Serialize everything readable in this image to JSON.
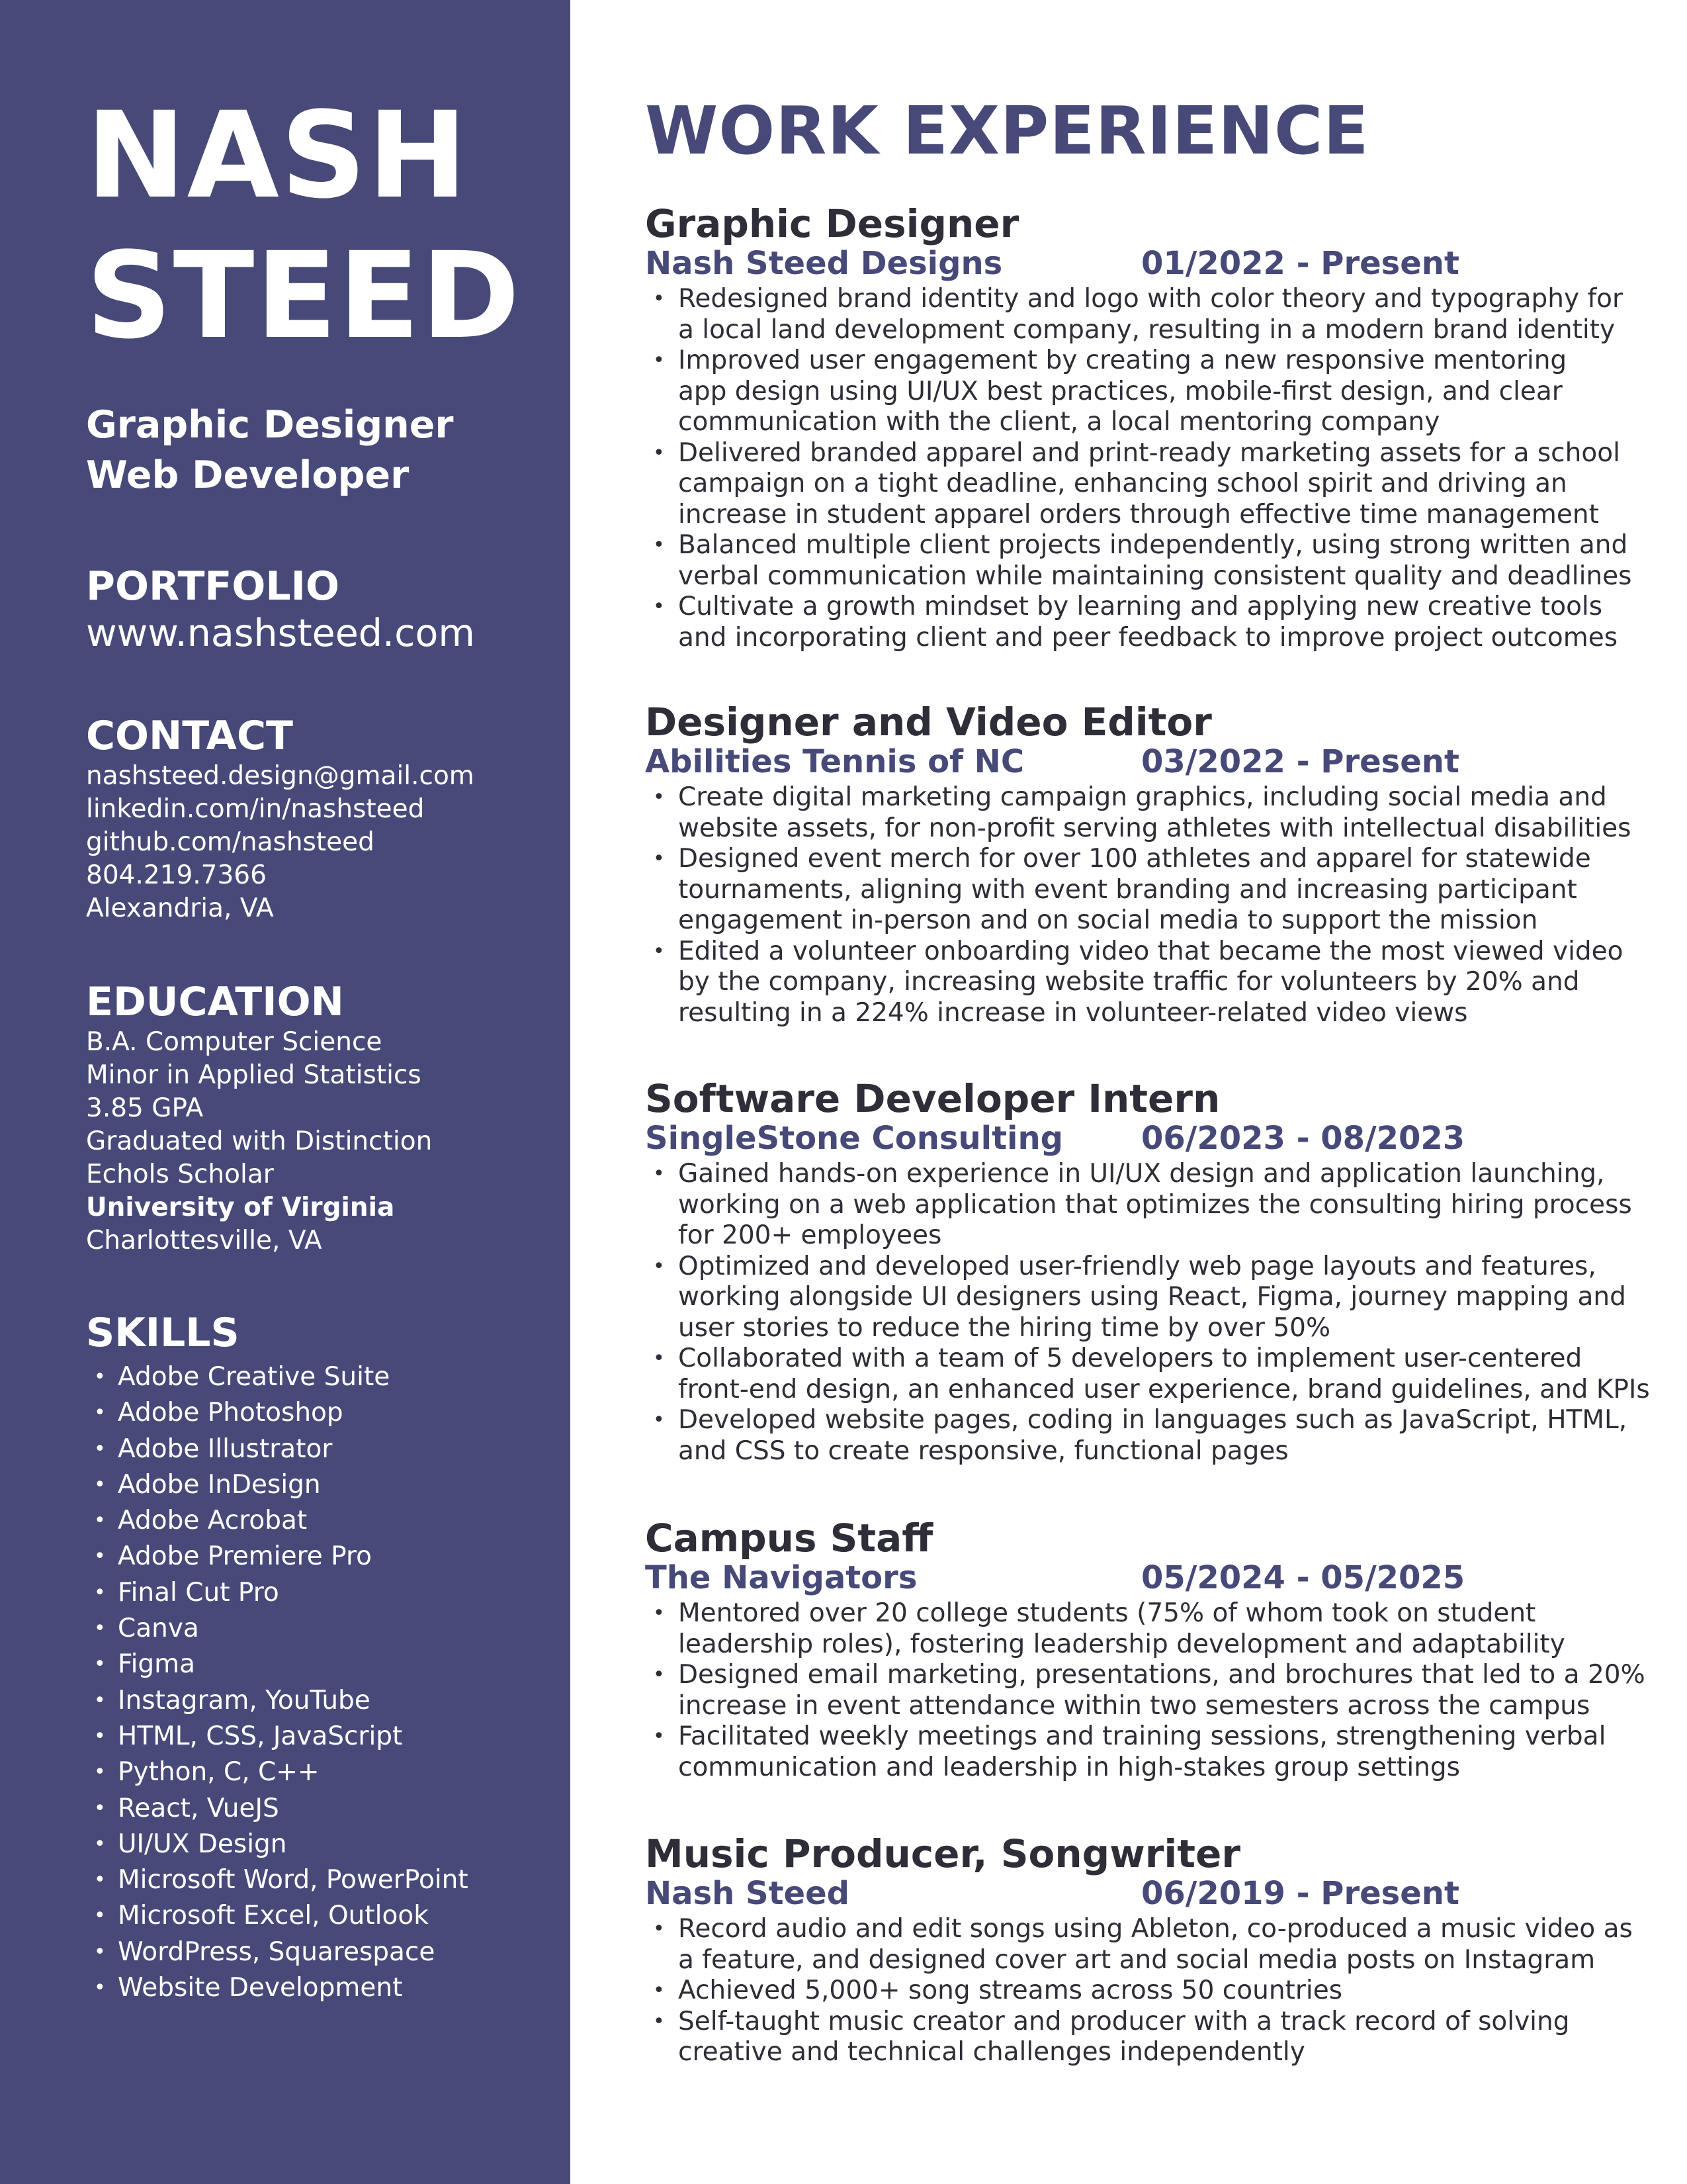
{
  "colors": {
    "sidebar": "#474a78",
    "accent": "#474a78",
    "text": "#2e2e38",
    "sidebar_text": "#ffffff"
  },
  "sidebar": {
    "name_first": "NASH",
    "name_last": "STEED",
    "title_1": "Graphic Designer",
    "title_2": "Web Developer",
    "portfolio": {
      "heading": "PORTFOLIO",
      "url": "www.nashsteed.com"
    },
    "contact": {
      "heading": "CONTACT",
      "items": [
        "nashsteed.design@gmail.com",
        "linkedin.com/in/nashsteed",
        "github.com/nashsteed",
        "804.219.7366",
        "Alexandria, VA"
      ]
    },
    "education": {
      "heading": "EDUCATION",
      "items": [
        "B.A. Computer Science",
        "Minor in Applied Statistics",
        "3.85 GPA",
        "Graduated with Distinction",
        "Echols Scholar",
        "University of Virginia",
        "Charlottesville, VA"
      ]
    },
    "skills": {
      "heading": "SKILLS",
      "items": [
        "Adobe Creative Suite",
        "Adobe Photoshop",
        "Adobe Illustrator",
        "Adobe InDesign",
        "Adobe Acrobat",
        "Adobe Premiere Pro",
        "Final Cut Pro",
        "Canva",
        "Figma",
        "Instagram, YouTube",
        "HTML, CSS, JavaScript",
        "Python, C, C++",
        "React, VueJS",
        "UI/UX Design",
        "Microsoft Word, PowerPoint",
        "Microsoft Excel, Outlook",
        "WordPress, Squarespace",
        "Website Development"
      ]
    }
  },
  "main": {
    "heading": "WORK EXPERIENCE",
    "jobs": [
      {
        "title": "Graphic Designer",
        "company": "Nash Steed Designs",
        "dates": "01/2022 - Present",
        "bullets": [
          [
            "Redesigned brand identity and logo with color theory and typography for",
            "a local land development company, resulting in a modern brand identity"
          ],
          [
            "Improved user engagement by creating a new responsive mentoring",
            "app design using UI/UX best practices, mobile-first design, and clear",
            "communication with the client, a local mentoring company"
          ],
          [
            "Delivered branded apparel and print-ready marketing assets for a school",
            "campaign on a tight deadline, enhancing school spirit and driving an",
            "increase in student apparel orders through effective time management"
          ],
          [
            "Balanced multiple client projects independently, using strong written and",
            "verbal communication while maintaining consistent quality and deadlines"
          ],
          [
            "Cultivate a growth mindset by learning and applying new creative tools",
            "and incorporating client and peer feedback to improve project outcomes"
          ]
        ]
      },
      {
        "title": "Designer and Video Editor",
        "company": "Abilities Tennis of NC",
        "dates": "03/2022 - Present",
        "bullets": [
          [
            "Create digital marketing campaign graphics, including social media and",
            "website assets, for non-profit serving athletes with intellectual disabilities"
          ],
          [
            "Designed event merch for over 100 athletes and apparel for statewide",
            "tournaments, aligning with event branding and increasing participant",
            "engagement in-person and on social media to support the mission"
          ],
          [
            "Edited a volunteer onboarding video that became the most viewed video",
            "by the company, increasing website traffic for volunteers by 20% and",
            "resulting in a 224% increase in volunteer-related video views"
          ]
        ]
      },
      {
        "title": "Software Developer Intern",
        "company": "SingleStone Consulting",
        "dates": "06/2023 - 08/2023",
        "bullets": [
          [
            "Gained hands-on experience in UI/UX design and application launching,",
            "working on a web application that optimizes the consulting hiring process",
            "for 200+ employees"
          ],
          [
            "Optimized and developed user-friendly web page layouts and features,",
            "working alongside UI designers using React, Figma, journey mapping and",
            "user stories to reduce the hiring time by over 50%"
          ],
          [
            "Collaborated with a team of 5 developers to implement user-centered",
            "front-end design, an enhanced user experience, brand guidelines, and KPIs"
          ],
          [
            "Developed website pages, coding in languages such as JavaScript, HTML,",
            "and CSS to create responsive, functional pages"
          ]
        ]
      },
      {
        "title": "Campus Staff",
        "company": "The Navigators",
        "dates": "05/2024 - 05/2025",
        "bullets": [
          [
            "Mentored over 20 college students (75% of whom took on student",
            "leadership roles), fostering leadership development and adaptability"
          ],
          [
            "Designed email marketing, presentations, and brochures that led to a 20%",
            "increase in event attendance within two semesters across the campus"
          ],
          [
            "Facilitated weekly meetings and training sessions, strengthening verbal",
            "communication and leadership in high-stakes group settings"
          ]
        ]
      },
      {
        "title": "Music Producer, Songwriter",
        "company": "Nash Steed",
        "dates": "06/2019 - Present",
        "bullets": [
          [
            "Record audio and edit songs using Ableton, co-produced a music video as",
            "a feature, and designed cover art and social media posts on Instagram"
          ],
          [
            "Achieved 5,000+ song streams across 50 countries"
          ],
          [
            "Self-taught music creator and producer with a track record of solving",
            "creative and technical challenges independently"
          ]
        ]
      }
    ]
  }
}
